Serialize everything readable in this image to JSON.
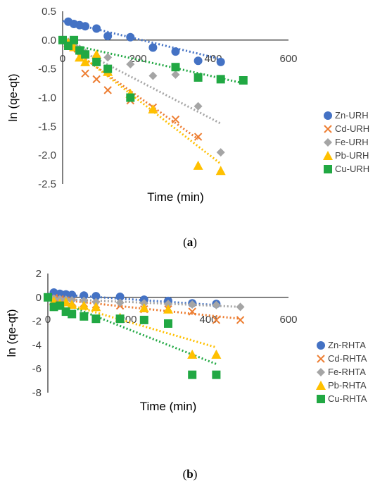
{
  "chart_data": [
    {
      "type": "scatter",
      "panel_label": "a",
      "xlabel": "Time (min)",
      "ylabel": "ln (qe-qt)",
      "xlim": [
        0,
        600
      ],
      "ylim": [
        -2.5,
        0.5
      ],
      "xticks": [
        "0",
        "200",
        "400",
        "600"
      ],
      "yticks": [
        "0.5",
        "0.0",
        "-0.5",
        "-1.0",
        "-1.5",
        "-2.0",
        "-2.5"
      ],
      "trendlines": "dotted linear fit per series",
      "legend_position": "right",
      "series": [
        {
          "name": "Zn-URH",
          "marker": "circle",
          "color": "#4472C4",
          "x": [
            15,
            30,
            45,
            60,
            90,
            120,
            180,
            240,
            300,
            360,
            420
          ],
          "y": [
            0.32,
            0.28,
            0.26,
            0.24,
            0.2,
            0.07,
            0.05,
            -0.13,
            -0.2,
            -0.36,
            -0.38
          ],
          "fit": [
            [
              0,
              0.33
            ],
            [
              420,
              -0.33
            ]
          ]
        },
        {
          "name": "Cd-URH",
          "marker": "x",
          "color": "#ED7D31",
          "x": [
            15,
            30,
            45,
            60,
            90,
            120,
            180,
            240,
            300,
            360
          ],
          "y": [
            -0.05,
            -0.12,
            -0.28,
            -0.58,
            -0.68,
            -0.87,
            -1.05,
            -1.17,
            -1.38,
            -1.68
          ],
          "fit": [
            [
              0,
              -0.05
            ],
            [
              360,
              -1.72
            ]
          ]
        },
        {
          "name": "Fe-URH",
          "marker": "diamond",
          "color": "#A5A5A5",
          "x": [
            15,
            30,
            45,
            60,
            90,
            120,
            180,
            240,
            300,
            360,
            420
          ],
          "y": [
            -0.03,
            -0.1,
            -0.15,
            -0.22,
            -0.28,
            -0.3,
            -0.42,
            -0.62,
            -0.6,
            -1.15,
            -1.95
          ],
          "fit": [
            [
              0,
              -0.02
            ],
            [
              420,
              -1.45
            ]
          ]
        },
        {
          "name": "Pb-URH",
          "marker": "triangle",
          "color": "#FFC000",
          "x": [
            15,
            30,
            45,
            60,
            90,
            120,
            180,
            240,
            360,
            420
          ],
          "y": [
            -0.05,
            -0.12,
            -0.3,
            -0.38,
            -0.25,
            -0.55,
            -0.93,
            -1.2,
            -2.18,
            -2.27
          ],
          "fit": [
            [
              0,
              -0.02
            ],
            [
              420,
              -2.15
            ]
          ]
        },
        {
          "name": "Cu-URH",
          "marker": "square",
          "color": "#21A843",
          "x": [
            0,
            15,
            30,
            45,
            60,
            90,
            120,
            180,
            300,
            360,
            420,
            480
          ],
          "y": [
            0.0,
            -0.1,
            0.0,
            -0.18,
            -0.25,
            -0.38,
            -0.5,
            -1.0,
            -0.47,
            -0.65,
            -0.68,
            -0.7
          ],
          "fit": [
            [
              0,
              -0.05
            ],
            [
              480,
              -0.75
            ]
          ]
        }
      ]
    },
    {
      "type": "scatter",
      "panel_label": "b",
      "xlabel": "Time (min)",
      "ylabel": "ln (qe-qt)",
      "xlim": [
        0,
        600
      ],
      "ylim": [
        -8,
        2
      ],
      "xticks": [
        "0",
        "200",
        "400",
        "600"
      ],
      "yticks": [
        "2",
        "0",
        "-2",
        "-4",
        "-6",
        "-8"
      ],
      "trendlines": "dotted linear fit per series",
      "legend_position": "right",
      "series": [
        {
          "name": "Zn-RHTA",
          "marker": "circle",
          "color": "#4472C4",
          "x": [
            15,
            30,
            45,
            60,
            90,
            120,
            180,
            240,
            300,
            360,
            420
          ],
          "y": [
            0.4,
            0.3,
            0.25,
            0.2,
            0.15,
            0.1,
            0.05,
            -0.2,
            -0.3,
            -0.5,
            -0.55
          ],
          "fit": [
            [
              0,
              0.3
            ],
            [
              420,
              -0.65
            ]
          ]
        },
        {
          "name": "Cd-RHTA",
          "marker": "x",
          "color": "#ED7D31",
          "x": [
            15,
            30,
            45,
            60,
            90,
            120,
            180,
            240,
            300,
            360,
            420,
            480
          ],
          "y": [
            -0.05,
            -0.15,
            -0.25,
            -0.4,
            -0.5,
            -0.6,
            -0.7,
            -1.0,
            -1.0,
            -1.2,
            -1.9,
            -1.9
          ],
          "fit": [
            [
              0,
              -0.1
            ],
            [
              480,
              -1.8
            ]
          ]
        },
        {
          "name": "Fe-RHTA",
          "marker": "diamond",
          "color": "#A5A5A5",
          "x": [
            15,
            30,
            45,
            60,
            90,
            120,
            180,
            240,
            300,
            360,
            420,
            480
          ],
          "y": [
            -0.1,
            -0.15,
            -0.2,
            -0.25,
            -0.3,
            -0.4,
            -0.45,
            -0.5,
            -0.55,
            -0.6,
            -0.65,
            -0.8
          ],
          "fit": [
            [
              0,
              -0.1
            ],
            [
              480,
              -0.8
            ]
          ]
        },
        {
          "name": "Pb-RHTA",
          "marker": "triangle",
          "color": "#FFC000",
          "x": [
            15,
            30,
            45,
            60,
            90,
            120,
            180,
            240,
            300,
            360,
            420
          ],
          "y": [
            -0.3,
            -0.5,
            -0.4,
            -0.6,
            -0.7,
            -0.8,
            -1.7,
            -0.9,
            -1.0,
            -4.8,
            -4.8
          ],
          "fit": [
            [
              0,
              -0.1
            ],
            [
              420,
              -4.2
            ]
          ]
        },
        {
          "name": "Cu-RHTA",
          "marker": "square",
          "color": "#21A843",
          "x": [
            0,
            15,
            30,
            45,
            60,
            90,
            120,
            180,
            240,
            300,
            360,
            420
          ],
          "y": [
            0.0,
            -0.8,
            -0.7,
            -1.2,
            -1.4,
            -1.6,
            -1.8,
            -1.8,
            -1.9,
            -2.2,
            -6.5,
            -6.5
          ],
          "fit": [
            [
              0,
              0.0
            ],
            [
              420,
              -5.6
            ]
          ]
        }
      ]
    }
  ],
  "captions": [
    {
      "open": "(",
      "letter": "a",
      "close": ")"
    },
    {
      "open": "(",
      "letter": "b",
      "close": ")"
    }
  ]
}
